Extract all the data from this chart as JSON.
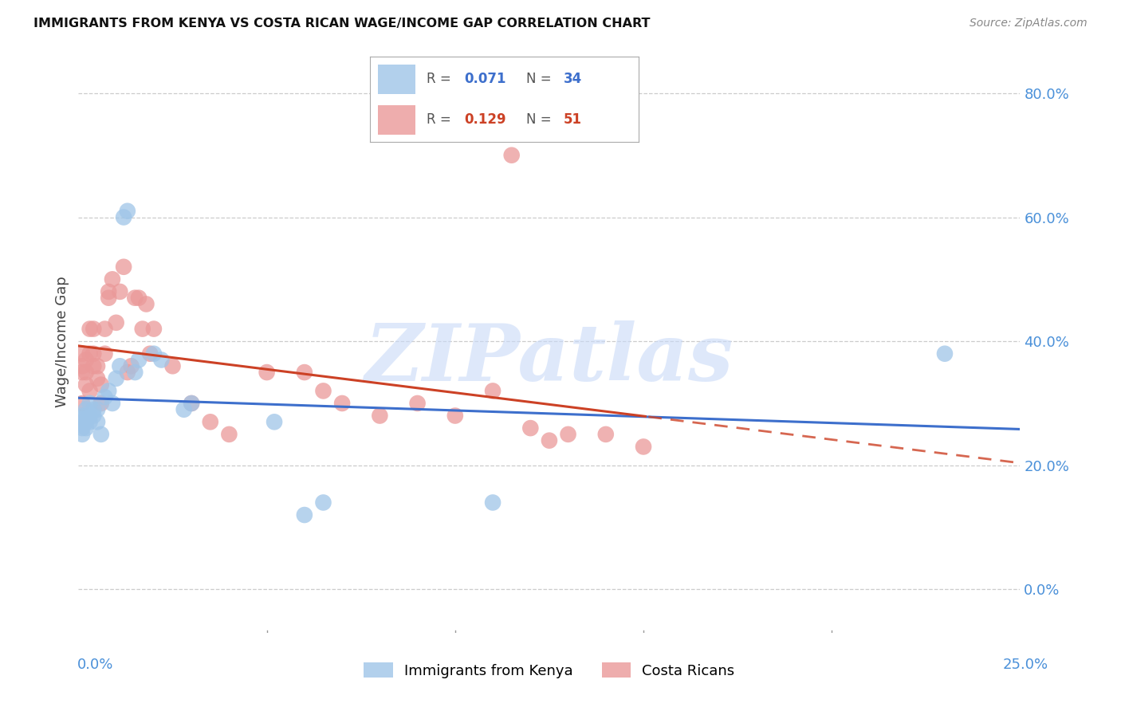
{
  "title": "IMMIGRANTS FROM KENYA VS COSTA RICAN WAGE/INCOME GAP CORRELATION CHART",
  "source": "Source: ZipAtlas.com",
  "ylabel": "Wage/Income Gap",
  "xlim": [
    0.0,
    0.25
  ],
  "ylim": [
    -0.07,
    0.87
  ],
  "right_yticks": [
    0.0,
    0.2,
    0.4,
    0.6,
    0.8
  ],
  "right_yticklabels": [
    "0.0%",
    "20.0%",
    "40.0%",
    "60.0%",
    "80.0%"
  ],
  "xtick_left_label": "0.0%",
  "xtick_right_label": "25.0%",
  "legend_r1": "0.071",
  "legend_n1": "34",
  "legend_r2": "0.129",
  "legend_n2": "51",
  "blue_scatter_color": "#9fc5e8",
  "pink_scatter_color": "#ea9999",
  "blue_line_color": "#3d6fcc",
  "pink_line_color": "#cc4125",
  "watermark_text": "ZIPatlas",
  "watermark_color": "#c9daf8",
  "legend1_label": "Immigrants from Kenya",
  "legend2_label": "Costa Ricans",
  "kenya_x": [
    0.001,
    0.001,
    0.001,
    0.001,
    0.002,
    0.002,
    0.002,
    0.002,
    0.003,
    0.003,
    0.003,
    0.004,
    0.004,
    0.005,
    0.005,
    0.006,
    0.007,
    0.008,
    0.009,
    0.01,
    0.011,
    0.012,
    0.013,
    0.015,
    0.016,
    0.02,
    0.022,
    0.028,
    0.03,
    0.052,
    0.06,
    0.065,
    0.11,
    0.23
  ],
  "kenya_y": [
    0.27,
    0.26,
    0.28,
    0.25,
    0.27,
    0.26,
    0.29,
    0.28,
    0.27,
    0.3,
    0.28,
    0.29,
    0.28,
    0.27,
    0.29,
    0.25,
    0.31,
    0.32,
    0.3,
    0.34,
    0.36,
    0.6,
    0.61,
    0.35,
    0.37,
    0.38,
    0.37,
    0.29,
    0.3,
    0.27,
    0.12,
    0.14,
    0.14,
    0.38
  ],
  "costarica_x": [
    0.001,
    0.001,
    0.001,
    0.001,
    0.002,
    0.002,
    0.002,
    0.003,
    0.003,
    0.003,
    0.004,
    0.004,
    0.004,
    0.005,
    0.005,
    0.006,
    0.006,
    0.007,
    0.007,
    0.008,
    0.008,
    0.009,
    0.01,
    0.011,
    0.012,
    0.013,
    0.014,
    0.015,
    0.016,
    0.017,
    0.018,
    0.019,
    0.02,
    0.025,
    0.03,
    0.035,
    0.04,
    0.05,
    0.06,
    0.065,
    0.07,
    0.08,
    0.09,
    0.1,
    0.11,
    0.115,
    0.12,
    0.125,
    0.13,
    0.14,
    0.15
  ],
  "costarica_y": [
    0.3,
    0.36,
    0.35,
    0.38,
    0.33,
    0.35,
    0.37,
    0.32,
    0.38,
    0.42,
    0.36,
    0.38,
    0.42,
    0.34,
    0.36,
    0.3,
    0.33,
    0.38,
    0.42,
    0.47,
    0.48,
    0.5,
    0.43,
    0.48,
    0.52,
    0.35,
    0.36,
    0.47,
    0.47,
    0.42,
    0.46,
    0.38,
    0.42,
    0.36,
    0.3,
    0.27,
    0.25,
    0.35,
    0.35,
    0.32,
    0.3,
    0.28,
    0.3,
    0.28,
    0.32,
    0.7,
    0.26,
    0.24,
    0.25,
    0.25,
    0.23
  ]
}
